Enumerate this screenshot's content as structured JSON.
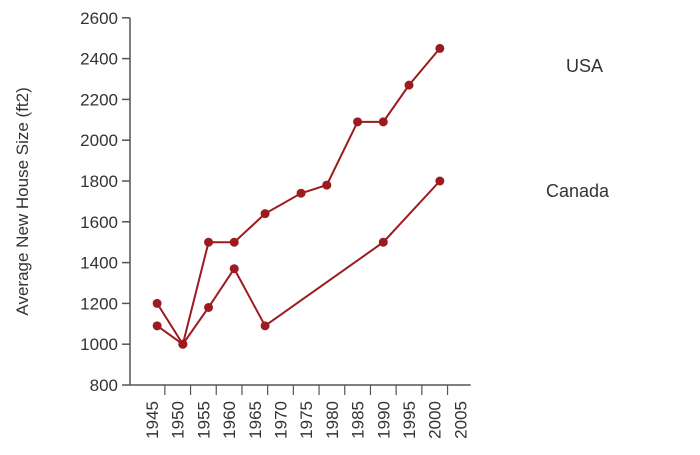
{
  "chart_data": {
    "type": "line",
    "title": "",
    "xlabel": "",
    "ylabel": "Average New House Size (ft2)",
    "xlim": [
      1945,
      2005
    ],
    "ylim": [
      800,
      2600
    ],
    "x_ticks": [
      "1945",
      "1950",
      "1955",
      "1960",
      "1965",
      "1970",
      "1975",
      "1980",
      "1985",
      "1990",
      "1995",
      "2000",
      "2005"
    ],
    "y_ticks": [
      "800",
      "1000",
      "1200",
      "1400",
      "1600",
      "1800",
      "2000",
      "2200",
      "2400",
      "2600"
    ],
    "grid": false,
    "legend": "none",
    "series": [
      {
        "name": "USA",
        "color": "#9b1b1e",
        "points": [
          {
            "x": 1946,
            "y": 1090
          },
          {
            "x": 1951,
            "y": 1000
          },
          {
            "x": 1956,
            "y": 1500
          },
          {
            "x": 1961,
            "y": 1500
          },
          {
            "x": 1967,
            "y": 1640
          },
          {
            "x": 1974,
            "y": 1740
          },
          {
            "x": 1979,
            "y": 1780
          },
          {
            "x": 1985,
            "y": 2090
          },
          {
            "x": 1990,
            "y": 2090
          },
          {
            "x": 1995,
            "y": 2270
          },
          {
            "x": 2001,
            "y": 2450
          }
        ]
      },
      {
        "name": "Canada",
        "color": "#9b1b1e",
        "points": [
          {
            "x": 1946,
            "y": 1200
          },
          {
            "x": 1951,
            "y": 1000
          },
          {
            "x": 1956,
            "y": 1180
          },
          {
            "x": 1961,
            "y": 1370
          },
          {
            "x": 1967,
            "y": 1090
          },
          {
            "x": 1990,
            "y": 1500
          },
          {
            "x": 2001,
            "y": 1800
          }
        ]
      }
    ]
  }
}
